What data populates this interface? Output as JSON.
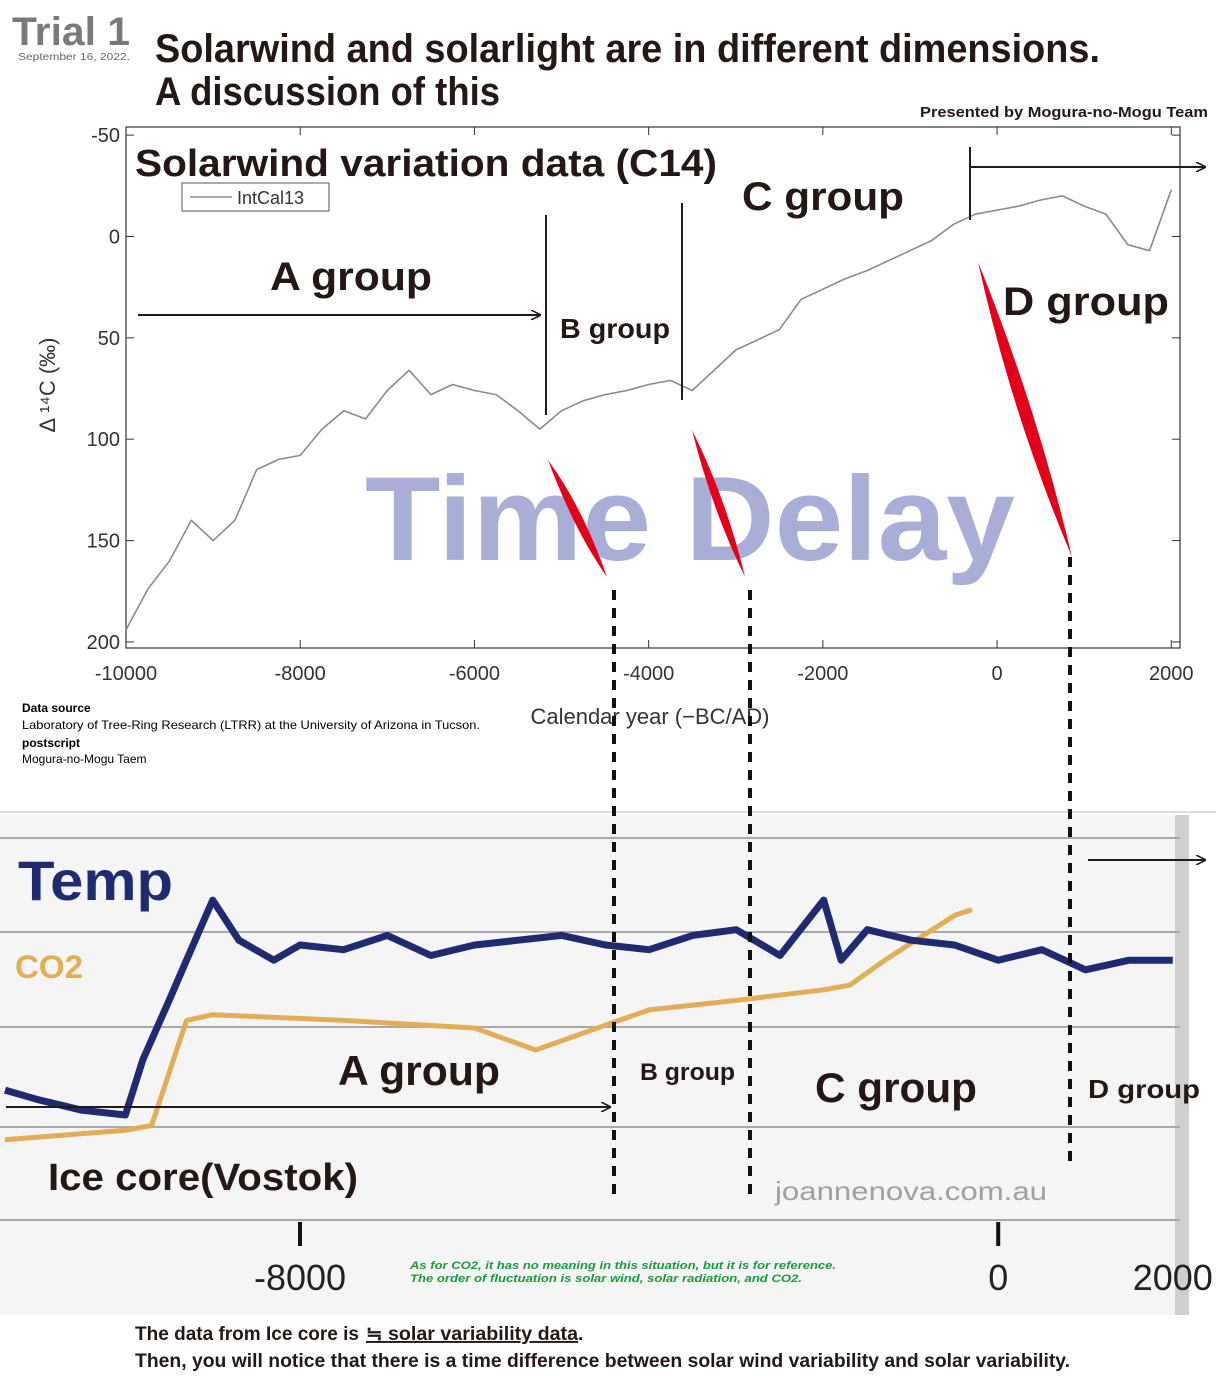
{
  "header": {
    "badge": "Trial 1",
    "date": "September 16, 2022.",
    "title": [
      "Solarwind and solarlight are in different dimensions.",
      "A discussion of this"
    ],
    "credit": "Presented by Mogura-no-Mogu Team"
  },
  "data_source": {
    "heading": "Data source",
    "text": "Laboratory of Tree-Ring Research (LTRR) at the University of Arizona in Tucson.",
    "postscript_heading": "postscript",
    "postscript": "Mogura-no-Mogu Taem"
  },
  "chart_data": [
    {
      "type": "line",
      "title": "Solarwind variation data (C14)",
      "xlabel": "Calendar year (−BC/AD)",
      "ylabel": "Δ ¹⁴C (‰)",
      "x": [
        -10000,
        -9750,
        -9500,
        -9250,
        -9000,
        -8750,
        -8500,
        -8250,
        -8000,
        -7750,
        -7500,
        -7250,
        -7000,
        -6750,
        -6500,
        -6250,
        -6000,
        -5750,
        -5500,
        -5250,
        -5000,
        -4750,
        -4500,
        -4250,
        -4000,
        -3750,
        -3500,
        -3250,
        -3000,
        -2750,
        -2500,
        -2250,
        -2000,
        -1750,
        -1500,
        -1250,
        -1000,
        -750,
        -500,
        -250,
        0,
        250,
        500,
        750,
        1000,
        1250,
        1500,
        1750,
        2000
      ],
      "series": [
        {
          "name": "IntCal13",
          "color": "#8a8a8a",
          "values": [
            194,
            174,
            160,
            140,
            150,
            140,
            115,
            110,
            108,
            95,
            86,
            90,
            76,
            66,
            78,
            73,
            76,
            78,
            86,
            95,
            86,
            81,
            78,
            76,
            73,
            71,
            76,
            66,
            56,
            51,
            46,
            31,
            26,
            21,
            17,
            12,
            7,
            2,
            -6,
            -11,
            -13,
            -15,
            -18,
            -20,
            -15,
            -11,
            4,
            7,
            -23
          ]
        }
      ],
      "xlim": [
        -10000,
        2100
      ],
      "ylim": [
        203,
        -54
      ],
      "xticks": [
        -10000,
        -8000,
        -6000,
        -4000,
        -2000,
        0,
        2000
      ],
      "yticks": [
        -50,
        0,
        50,
        100,
        150,
        200
      ],
      "legend": "upper left",
      "annotations": [
        "A group",
        "B group",
        "C group",
        "D group",
        "Time Delay"
      ]
    },
    {
      "type": "line",
      "series": [
        {
          "name": "Temp",
          "color": "#1f2a70",
          "x": [
            -11380,
            -11000,
            -10500,
            -10000,
            -9800,
            -9500,
            -9300,
            -9000,
            -8700,
            -8300,
            -8000,
            -7500,
            -7000,
            -6500,
            -6000,
            -5500,
            -5000,
            -4500,
            -4000,
            -3500,
            -3000,
            -2500,
            -2000,
            -1800,
            -1500,
            -1000,
            -500,
            0,
            500,
            1000,
            1500,
            2000
          ],
          "values": [
            1.36,
            1.26,
            1.15,
            1.1,
            1.68,
            2.3,
            2.72,
            3.35,
            2.93,
            2.72,
            2.88,
            2.83,
            2.98,
            2.77,
            2.88,
            2.93,
            2.98,
            2.88,
            2.83,
            2.98,
            3.04,
            2.77,
            3.35,
            2.72,
            3.04,
            2.93,
            2.88,
            2.72,
            2.83,
            2.62,
            2.72,
            2.72
          ]
        },
        {
          "name": "CO2",
          "color": "#e3ad55",
          "x": [
            -11380,
            -10000,
            -9700,
            -9300,
            -9000,
            -7500,
            -6000,
            -5300,
            -4500,
            -4000,
            -3000,
            -2000,
            -1700,
            -1300,
            -500,
            -300
          ],
          "values": [
            0.84,
            0.94,
            0.99,
            2.09,
            2.15,
            2.09,
            2.01,
            1.78,
            2.04,
            2.2,
            2.3,
            2.41,
            2.46,
            2.72,
            3.19,
            3.25
          ]
        }
      ],
      "xlim": [
        -11380,
        2140
      ],
      "ylim": [
        0,
        4
      ],
      "xticks": [
        -8000,
        0,
        2000
      ],
      "annotations": [
        "A group",
        "B group",
        "C group",
        "D group",
        "Ice core(Vostok)"
      ],
      "source": "joannenova.com.au",
      "note": [
        "As for CO2, it has no meaning in this situation, but it is for reference.",
        "The order of fluctuation is solar wind, solar radiation, and CO2."
      ]
    }
  ],
  "footer": {
    "prefix": "The data from Ice core is",
    "underlined": "≒ solar variability data",
    "suffix": ".",
    "line2": "Then, you will notice that there is a time difference between solar wind variability and solar variability."
  }
}
